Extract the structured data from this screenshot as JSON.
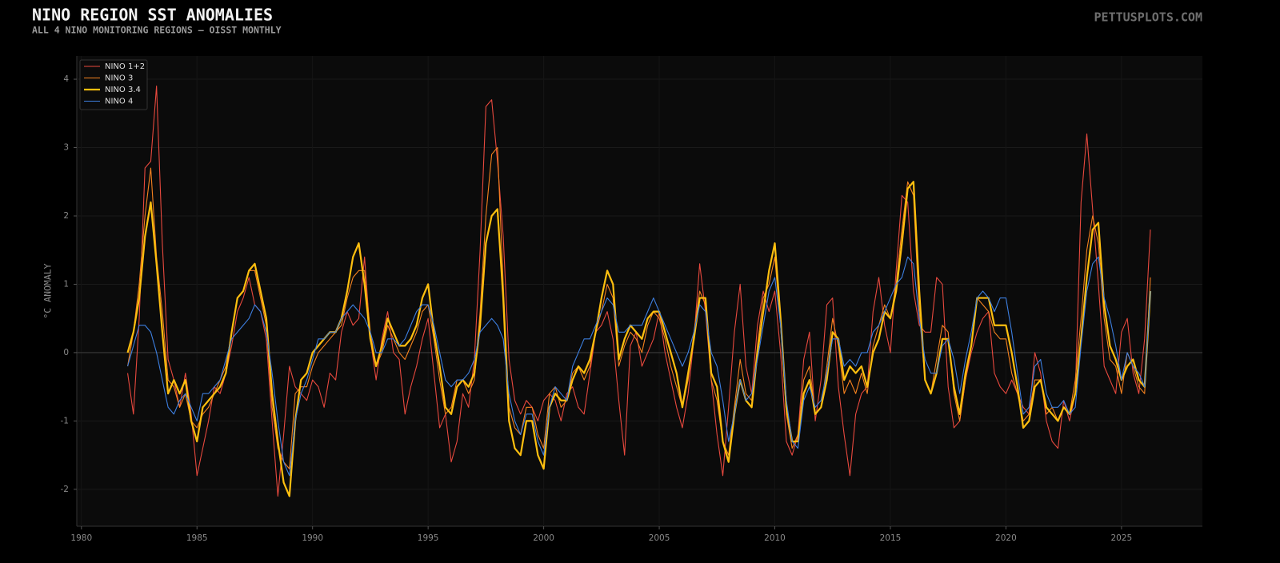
{
  "chart_data": {
    "type": "line",
    "title": "NINO REGION SST ANOMALIES",
    "subtitle": "ALL 4 NINO MONITORING REGIONS — OISST MONTHLY",
    "source": "PETTUSPLOTS.COM",
    "y_label": "°C ANOMALY",
    "xlim": [
      1979.8,
      2028.5
    ],
    "ylim": [
      -2.54,
      4.34
    ],
    "xticks": [
      1980,
      1985,
      1990,
      1995,
      2000,
      2005,
      2010,
      2015,
      2020,
      2025
    ],
    "yticks": [
      -2,
      -1,
      0,
      1,
      2,
      3,
      4
    ],
    "grid": true,
    "legend": "upper left",
    "x": [
      1982.0,
      1982.25,
      1982.5,
      1982.75,
      1983.0,
      1983.25,
      1983.5,
      1983.75,
      1984.0,
      1984.25,
      1984.5,
      1984.75,
      1985.0,
      1985.25,
      1985.5,
      1985.75,
      1986.0,
      1986.25,
      1986.5,
      1986.75,
      1987.0,
      1987.25,
      1987.5,
      1987.75,
      1988.0,
      1988.25,
      1988.5,
      1988.75,
      1989.0,
      1989.25,
      1989.5,
      1989.75,
      1990.0,
      1990.25,
      1990.5,
      1990.75,
      1991.0,
      1991.25,
      1991.5,
      1991.75,
      1992.0,
      1992.25,
      1992.5,
      1992.75,
      1993.0,
      1993.25,
      1993.5,
      1993.75,
      1994.0,
      1994.25,
      1994.5,
      1994.75,
      1995.0,
      1995.25,
      1995.5,
      1995.75,
      1996.0,
      1996.25,
      1996.5,
      1996.75,
      1997.0,
      1997.25,
      1997.5,
      1997.75,
      1998.0,
      1998.25,
      1998.5,
      1998.75,
      1999.0,
      1999.25,
      1999.5,
      1999.75,
      2000.0,
      2000.25,
      2000.5,
      2000.75,
      2001.0,
      2001.25,
      2001.5,
      2001.75,
      2002.0,
      2002.25,
      2002.5,
      2002.75,
      2003.0,
      2003.25,
      2003.5,
      2003.75,
      2004.0,
      2004.25,
      2004.5,
      2004.75,
      2005.0,
      2005.25,
      2005.5,
      2005.75,
      2006.0,
      2006.25,
      2006.5,
      2006.75,
      2007.0,
      2007.25,
      2007.5,
      2007.75,
      2008.0,
      2008.25,
      2008.5,
      2008.75,
      2009.0,
      2009.25,
      2009.5,
      2009.75,
      2010.0,
      2010.25,
      2010.5,
      2010.75,
      2011.0,
      2011.25,
      2011.5,
      2011.75,
      2012.0,
      2012.25,
      2012.5,
      2012.75,
      2013.0,
      2013.25,
      2013.5,
      2013.75,
      2014.0,
      2014.25,
      2014.5,
      2014.75,
      2015.0,
      2015.25,
      2015.5,
      2015.75,
      2016.0,
      2016.25,
      2016.5,
      2016.75,
      2017.0,
      2017.25,
      2017.5,
      2017.75,
      2018.0,
      2018.25,
      2018.5,
      2018.75,
      2019.0,
      2019.25,
      2019.5,
      2019.75,
      2020.0,
      2020.25,
      2020.5,
      2020.75,
      2021.0,
      2021.25,
      2021.5,
      2021.75,
      2022.0,
      2022.25,
      2022.5,
      2022.75,
      2023.0,
      2023.25,
      2023.5,
      2023.75,
      2024.0,
      2024.25,
      2024.5,
      2024.75,
      2025.0,
      2025.25,
      2025.5,
      2025.75,
      2026.0,
      2026.25
    ],
    "series": [
      {
        "name": "NINO 1+2",
        "color": "#e8493e",
        "line_width": 1.1,
        "values": [
          -0.3,
          -0.9,
          0.5,
          2.7,
          2.8,
          3.9,
          1.6,
          -0.1,
          -0.4,
          -0.8,
          -0.3,
          -0.9,
          -1.8,
          -1.4,
          -1.0,
          -0.5,
          -0.6,
          -0.3,
          0.1,
          0.6,
          0.8,
          1.1,
          0.7,
          0.6,
          0.2,
          -1.0,
          -2.1,
          -1.2,
          -0.2,
          -0.5,
          -0.6,
          -0.7,
          -0.4,
          -0.5,
          -0.8,
          -0.3,
          -0.4,
          0.3,
          0.6,
          0.4,
          0.5,
          1.4,
          0.2,
          -0.4,
          0.2,
          0.6,
          0.0,
          -0.1,
          -0.9,
          -0.5,
          -0.2,
          0.2,
          0.5,
          -0.3,
          -1.1,
          -0.9,
          -1.6,
          -1.3,
          -0.6,
          -0.8,
          -0.1,
          1.5,
          3.6,
          3.7,
          2.8,
          1.7,
          -0.1,
          -0.7,
          -0.9,
          -0.7,
          -0.8,
          -1.0,
          -0.7,
          -0.6,
          -0.7,
          -1.0,
          -0.6,
          -0.5,
          -0.8,
          -0.9,
          -0.3,
          0.3,
          0.4,
          0.6,
          0.2,
          -0.7,
          -1.5,
          0.1,
          0.3,
          -0.2,
          0.0,
          0.2,
          0.6,
          0.0,
          -0.4,
          -0.8,
          -1.1,
          -0.6,
          0.2,
          1.3,
          0.6,
          -0.4,
          -1.2,
          -1.8,
          -0.8,
          0.3,
          1.0,
          -0.2,
          -0.6,
          0.4,
          0.9,
          0.6,
          0.9,
          0.0,
          -1.3,
          -1.5,
          -1.2,
          -0.1,
          0.3,
          -1.0,
          -0.4,
          0.7,
          0.8,
          -0.5,
          -1.2,
          -1.8,
          -0.9,
          -0.6,
          -0.5,
          0.6,
          1.1,
          0.4,
          0.0,
          1.2,
          2.3,
          2.2,
          0.9,
          0.4,
          0.3,
          0.3,
          1.1,
          1.0,
          -0.5,
          -1.1,
          -1.0,
          -0.4,
          0.0,
          0.3,
          0.5,
          0.6,
          -0.3,
          -0.5,
          -0.6,
          -0.4,
          -0.6,
          -0.8,
          -0.9,
          0.0,
          -0.3,
          -1.0,
          -1.3,
          -1.4,
          -0.7,
          -1.0,
          -0.6,
          2.2,
          3.2,
          2.1,
          1.0,
          -0.2,
          -0.4,
          -0.6,
          0.3,
          0.5,
          -0.3,
          -0.6,
          0.2,
          1.8
        ]
      },
      {
        "name": "NINO 3",
        "color": "#f5821f",
        "line_width": 1.1,
        "values": [
          -0.2,
          0.3,
          1.0,
          2.0,
          2.7,
          1.4,
          0.6,
          -0.4,
          -0.5,
          -0.8,
          -0.6,
          -1.0,
          -1.1,
          -0.9,
          -0.8,
          -0.6,
          -0.4,
          -0.2,
          0.3,
          0.8,
          0.9,
          1.2,
          1.2,
          0.8,
          0.4,
          -0.8,
          -1.4,
          -1.6,
          -1.7,
          -0.6,
          -0.5,
          -0.5,
          -0.2,
          0.0,
          0.1,
          0.2,
          0.3,
          0.4,
          0.8,
          1.1,
          1.2,
          1.2,
          0.3,
          -0.2,
          0.0,
          0.4,
          0.2,
          0.0,
          -0.1,
          0.1,
          0.3,
          0.6,
          0.7,
          0.2,
          -0.4,
          -0.9,
          -0.8,
          -0.4,
          -0.4,
          -0.6,
          -0.4,
          0.6,
          2.0,
          2.9,
          3.0,
          1.0,
          -0.8,
          -1.1,
          -1.2,
          -0.8,
          -0.8,
          -1.2,
          -1.4,
          -0.6,
          -0.5,
          -0.8,
          -0.7,
          -0.3,
          -0.2,
          -0.4,
          -0.2,
          0.3,
          0.6,
          1.0,
          0.8,
          -0.2,
          0.1,
          0.3,
          0.2,
          0.0,
          0.4,
          0.6,
          0.5,
          0.2,
          -0.2,
          -0.5,
          -0.8,
          -0.4,
          0.3,
          0.9,
          0.7,
          -0.4,
          -0.7,
          -1.3,
          -1.5,
          -0.8,
          -0.1,
          -0.6,
          -0.7,
          0.1,
          0.8,
          1.0,
          1.4,
          0.4,
          -0.9,
          -1.4,
          -1.2,
          -0.4,
          -0.2,
          -0.9,
          -0.8,
          -0.2,
          0.5,
          0.1,
          -0.6,
          -0.4,
          -0.6,
          -0.3,
          -0.6,
          0.1,
          0.4,
          0.7,
          0.5,
          1.0,
          1.8,
          2.5,
          2.3,
          0.6,
          -0.4,
          -0.6,
          -0.1,
          0.4,
          0.3,
          -0.6,
          -1.0,
          -0.4,
          0.1,
          0.8,
          0.7,
          0.6,
          0.3,
          0.2,
          0.2,
          -0.3,
          -0.6,
          -1.0,
          -0.9,
          -0.4,
          -0.4,
          -0.9,
          -0.8,
          -1.0,
          -0.8,
          -0.9,
          -0.4,
          0.5,
          1.5,
          2.0,
          1.6,
          0.5,
          -0.1,
          -0.2,
          -0.6,
          0.0,
          -0.2,
          -0.5,
          -0.6,
          1.1
        ]
      },
      {
        "name": "NINO 3.4",
        "color": "#ffbf0f",
        "line_width": 2.2,
        "values": [
          0.0,
          0.3,
          0.8,
          1.7,
          2.2,
          1.3,
          0.3,
          -0.6,
          -0.4,
          -0.6,
          -0.4,
          -1.0,
          -1.3,
          -0.8,
          -0.7,
          -0.6,
          -0.5,
          -0.3,
          0.3,
          0.8,
          0.9,
          1.2,
          1.3,
          0.9,
          0.5,
          -0.6,
          -1.3,
          -1.9,
          -2.1,
          -1.0,
          -0.4,
          -0.3,
          0.0,
          0.1,
          0.2,
          0.3,
          0.3,
          0.5,
          0.9,
          1.4,
          1.6,
          1.0,
          0.2,
          -0.2,
          0.1,
          0.5,
          0.3,
          0.1,
          0.1,
          0.2,
          0.4,
          0.8,
          1.0,
          0.3,
          -0.2,
          -0.8,
          -0.9,
          -0.5,
          -0.4,
          -0.5,
          -0.3,
          0.4,
          1.6,
          2.0,
          2.1,
          0.8,
          -1.0,
          -1.4,
          -1.5,
          -1.0,
          -1.0,
          -1.5,
          -1.7,
          -0.8,
          -0.6,
          -0.7,
          -0.7,
          -0.4,
          -0.2,
          -0.3,
          -0.1,
          0.3,
          0.8,
          1.2,
          1.0,
          -0.1,
          0.2,
          0.4,
          0.3,
          0.2,
          0.5,
          0.6,
          0.6,
          0.3,
          0.0,
          -0.3,
          -0.8,
          -0.3,
          0.2,
          0.8,
          0.8,
          -0.3,
          -0.5,
          -1.3,
          -1.6,
          -0.9,
          -0.4,
          -0.7,
          -0.8,
          0.0,
          0.6,
          1.2,
          1.6,
          0.5,
          -0.8,
          -1.3,
          -1.3,
          -0.6,
          -0.4,
          -0.9,
          -0.8,
          -0.4,
          0.3,
          0.2,
          -0.4,
          -0.2,
          -0.3,
          -0.2,
          -0.5,
          0.0,
          0.2,
          0.6,
          0.5,
          0.9,
          1.6,
          2.4,
          2.5,
          0.9,
          -0.4,
          -0.6,
          -0.3,
          0.2,
          0.2,
          -0.5,
          -0.9,
          -0.3,
          0.1,
          0.8,
          0.8,
          0.8,
          0.4,
          0.4,
          0.4,
          0.0,
          -0.5,
          -1.1,
          -1.0,
          -0.5,
          -0.4,
          -0.8,
          -0.9,
          -1.0,
          -0.8,
          -0.9,
          -0.6,
          0.2,
          1.1,
          1.8,
          1.9,
          0.7,
          0.1,
          -0.1,
          -0.4,
          -0.2,
          -0.1,
          -0.4,
          -0.5,
          0.9
        ]
      },
      {
        "name": "NINO 4",
        "color": "#3d7fe0",
        "line_width": 1.1,
        "values": [
          -0.2,
          0.1,
          0.4,
          0.4,
          0.3,
          0.0,
          -0.4,
          -0.8,
          -0.9,
          -0.7,
          -0.6,
          -0.8,
          -1.0,
          -0.6,
          -0.6,
          -0.5,
          -0.4,
          -0.1,
          0.2,
          0.3,
          0.4,
          0.5,
          0.7,
          0.6,
          0.3,
          -0.3,
          -1.0,
          -1.6,
          -1.8,
          -1.0,
          -0.6,
          -0.4,
          -0.1,
          0.2,
          0.2,
          0.3,
          0.3,
          0.5,
          0.6,
          0.7,
          0.6,
          0.5,
          0.3,
          0.0,
          0.0,
          0.2,
          0.2,
          0.1,
          0.2,
          0.4,
          0.6,
          0.7,
          0.7,
          0.4,
          0.0,
          -0.4,
          -0.5,
          -0.4,
          -0.4,
          -0.3,
          -0.1,
          0.3,
          0.4,
          0.5,
          0.4,
          0.2,
          -0.6,
          -1.0,
          -1.2,
          -0.9,
          -0.9,
          -1.3,
          -1.5,
          -0.8,
          -0.5,
          -0.6,
          -0.7,
          -0.2,
          0.0,
          0.2,
          0.2,
          0.4,
          0.6,
          0.8,
          0.7,
          0.3,
          0.3,
          0.4,
          0.4,
          0.4,
          0.6,
          0.8,
          0.6,
          0.4,
          0.2,
          0.0,
          -0.2,
          0.0,
          0.3,
          0.7,
          0.6,
          0.0,
          -0.2,
          -0.7,
          -1.3,
          -0.9,
          -0.4,
          -0.7,
          -0.6,
          -0.1,
          0.4,
          0.9,
          1.1,
          0.4,
          -0.7,
          -1.3,
          -1.4,
          -0.7,
          -0.5,
          -0.8,
          -0.7,
          -0.3,
          0.2,
          0.2,
          -0.2,
          -0.1,
          -0.2,
          0.0,
          0.0,
          0.3,
          0.4,
          0.6,
          0.8,
          1.0,
          1.1,
          1.4,
          1.3,
          0.5,
          -0.1,
          -0.3,
          -0.3,
          0.1,
          0.2,
          -0.1,
          -0.6,
          -0.1,
          0.3,
          0.8,
          0.9,
          0.8,
          0.6,
          0.8,
          0.8,
          0.3,
          -0.3,
          -0.9,
          -0.8,
          -0.2,
          -0.1,
          -0.6,
          -0.8,
          -0.8,
          -0.7,
          -0.9,
          -0.8,
          0.1,
          0.9,
          1.3,
          1.4,
          0.8,
          0.5,
          0.1,
          -0.4,
          0.0,
          -0.2,
          -0.3,
          -0.5,
          0.9
        ]
      }
    ]
  }
}
